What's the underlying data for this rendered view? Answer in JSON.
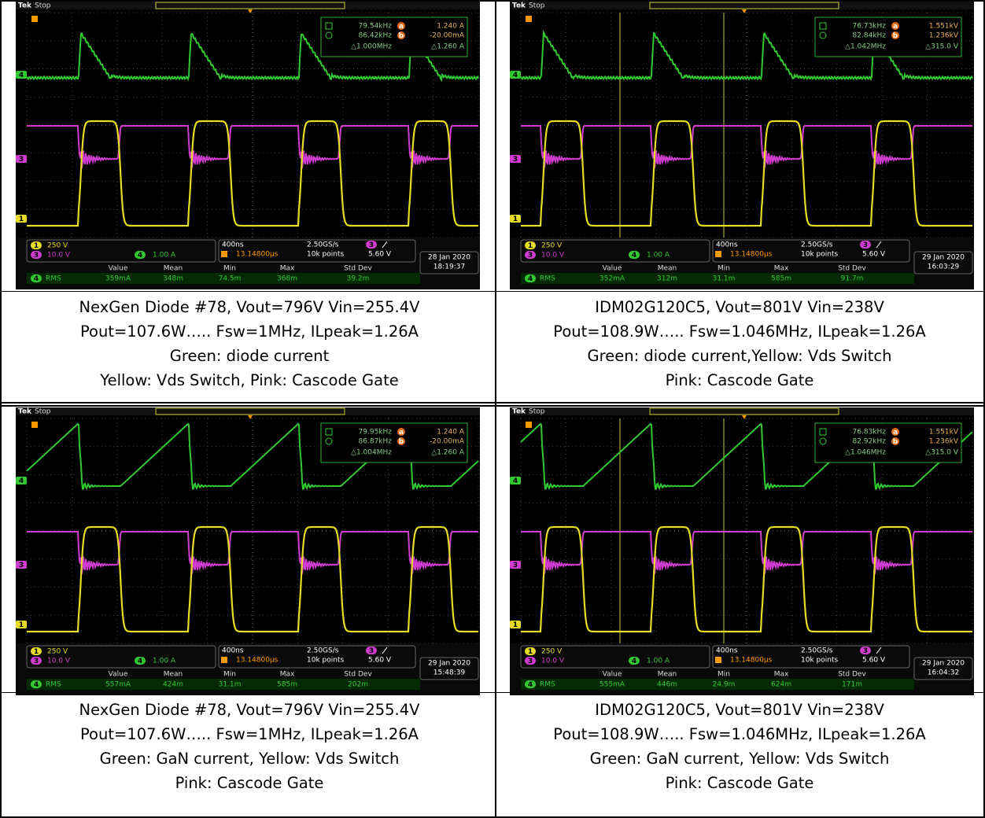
{
  "panels": [
    {
      "scope": {
        "brand": "Tek",
        "state": "Stop",
        "variant": "diode",
        "cursors": [
          {
            "mark": "a",
            "freq": "79.54kHz",
            "value": "1.240 A"
          },
          {
            "mark": "b",
            "freq": "86.42kHz",
            "value": "-20.00mA"
          }
        ],
        "delta": [
          "△1.000MHz",
          "△1.260 A"
        ],
        "channels": [
          {
            "number": "1",
            "scale": "250 V"
          },
          {
            "number": "3",
            "scale": "10.0 V"
          },
          {
            "number": "4",
            "scale": "1.00 A"
          }
        ],
        "timebase": "400ns",
        "sample_rate": "2.50GS/s",
        "record": "10k points",
        "trigger_pos": "13.14800µs",
        "trigger_level": "5.60 V",
        "date": "28 Jan 2020",
        "time": "18:19:37",
        "meas_headers": [
          "Value",
          "Mean",
          "Min",
          "Max",
          "Std Dev"
        ],
        "meas_label": "RMS",
        "meas_values": [
          "359mA",
          "348m",
          "74.5m",
          "368m",
          "39.2m"
        ]
      },
      "caption": [
        "NexGen Diode #78, Vout=796V Vin=255.4V",
        "Pout=107.6W….. Fsw=1MHz, ILpeak=1.26A",
        "Green: diode current",
        "Yellow: Vds Switch, Pink: Cascode Gate"
      ]
    },
    {
      "scope": {
        "brand": "Tek",
        "state": "Stop",
        "variant": "diode",
        "cursors": [
          {
            "mark": "a",
            "freq": "76.73kHz",
            "value": "1.551kV"
          },
          {
            "mark": "b",
            "freq": "82.84kHz",
            "value": "1.236kV"
          }
        ],
        "delta": [
          "△1.042MHz",
          "△315.0 V"
        ],
        "channels": [
          {
            "number": "1",
            "scale": "250 V"
          },
          {
            "number": "3",
            "scale": "10.0 V"
          },
          {
            "number": "4",
            "scale": "1.00 A"
          }
        ],
        "timebase": "400ns",
        "sample_rate": "2.50GS/s",
        "record": "10k points",
        "trigger_pos": "13.14800µs",
        "trigger_level": "5.60 V",
        "date": "29 Jan 2020",
        "time": "16:03:29",
        "meas_headers": [
          "Value",
          "Mean",
          "Min",
          "Max",
          "Std Dev"
        ],
        "meas_label": "RMS",
        "meas_values": [
          "352mA",
          "312m",
          "31.1m",
          "585m",
          "91.7m"
        ]
      },
      "caption": [
        "IDM02G120C5, Vout=801V Vin=238V",
        "Pout=108.9W….. Fsw=1.046MHz, ILpeak=1.26A",
        "Green: diode current,Yellow: Vds Switch",
        "Pink: Cascode Gate"
      ]
    },
    {
      "scope": {
        "brand": "Tek",
        "state": "Stop",
        "variant": "gan",
        "cursors": [
          {
            "mark": "a",
            "freq": "79.95kHz",
            "value": "1.240 A"
          },
          {
            "mark": "b",
            "freq": "86.87kHz",
            "value": "-20.00mA"
          }
        ],
        "delta": [
          "△1.004MHz",
          "△1.260 A"
        ],
        "channels": [
          {
            "number": "1",
            "scale": "250 V"
          },
          {
            "number": "3",
            "scale": "10.0 V"
          },
          {
            "number": "4",
            "scale": "1.00 A"
          }
        ],
        "timebase": "400ns",
        "sample_rate": "2.50GS/s",
        "record": "10k points",
        "trigger_pos": "13.14800µs",
        "trigger_level": "5.60 V",
        "date": "29 Jan 2020",
        "time": "15:48:39",
        "meas_headers": [
          "Value",
          "Mean",
          "Min",
          "Max",
          "Std Dev"
        ],
        "meas_label": "RMS",
        "meas_values": [
          "557mA",
          "424m",
          "31.1m",
          "585m",
          "202m"
        ]
      },
      "caption": [
        "NexGen Diode #78, Vout=796V Vin=255.4V",
        "Pout=107.6W….. Fsw=1MHz, ILpeak=1.26A",
        "Green: GaN current, Yellow: Vds Switch",
        "Pink: Cascode Gate"
      ]
    },
    {
      "scope": {
        "brand": "Tek",
        "state": "Stop",
        "variant": "gan",
        "cursors": [
          {
            "mark": "a",
            "freq": "76.83kHz",
            "value": "1.551kV"
          },
          {
            "mark": "b",
            "freq": "82.92kHz",
            "value": "1.236kV"
          }
        ],
        "delta": [
          "△1.046MHz",
          "△315.0 V"
        ],
        "channels": [
          {
            "number": "1",
            "scale": "250 V"
          },
          {
            "number": "3",
            "scale": "10.0 V"
          },
          {
            "number": "4",
            "scale": "1.00 A"
          }
        ],
        "timebase": "400ns",
        "sample_rate": "2.50GS/s",
        "record": "10k points",
        "trigger_pos": "13.14800µs",
        "trigger_level": "5.60 V",
        "date": "29 Jan 2020",
        "time": "16:04:32",
        "meas_headers": [
          "Value",
          "Mean",
          "Min",
          "Max",
          "Std Dev"
        ],
        "meas_label": "RMS",
        "meas_values": [
          "555mA",
          "446m",
          "24.9m",
          "624m",
          "171m"
        ]
      },
      "caption": [
        "IDM02G120C5, Vout=801V Vin=238V",
        "Pout=108.9W….. Fsw=1.046MHz, ILpeak=1.26A",
        "Green: GaN current, Yellow: Vds Switch",
        "Pink: Cascode Gate"
      ]
    }
  ]
}
